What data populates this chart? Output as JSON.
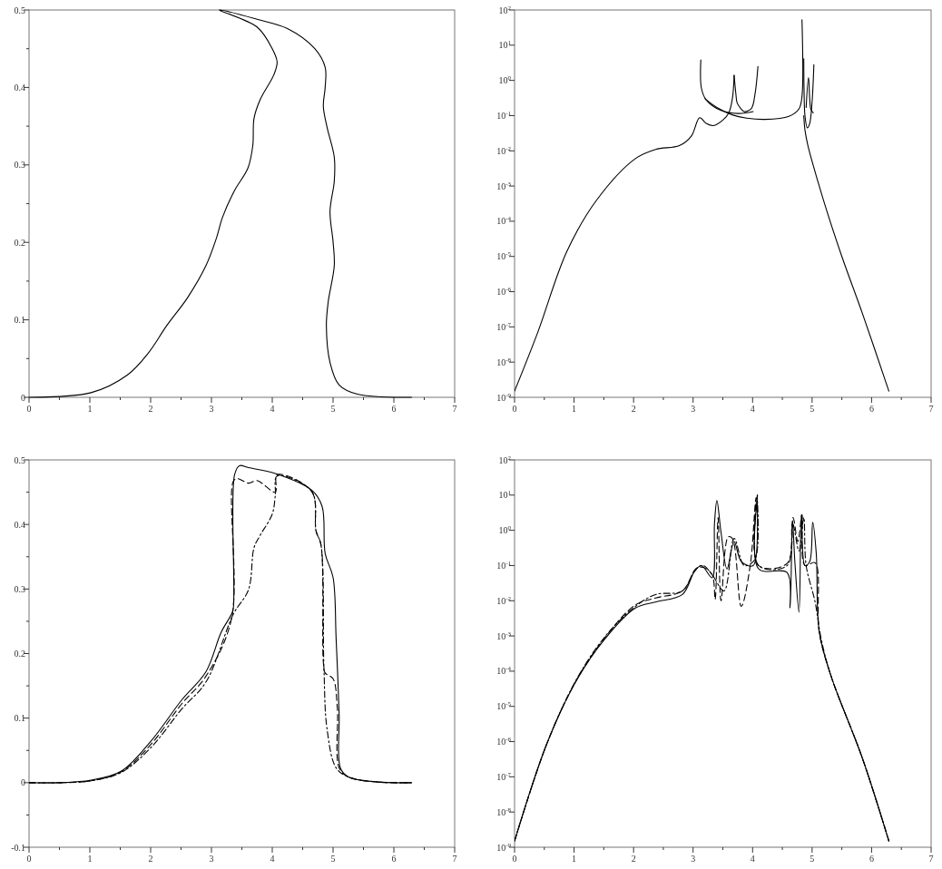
{
  "chart_data": [
    {
      "type": "line",
      "xlim": [
        0,
        7
      ],
      "ylim": [
        0,
        0.5
      ],
      "xticks": [
        0,
        {
          "value": 0.5,
          "label": null
        },
        1,
        {
          "value": 1.5,
          "label": null
        },
        2,
        {
          "value": 2.5,
          "label": null
        },
        3,
        {
          "value": 3.5,
          "label": null
        },
        4,
        {
          "value": 4.5,
          "label": null
        },
        5,
        {
          "value": 5.5,
          "label": null
        },
        6,
        {
          "value": 6.5,
          "label": null
        },
        7
      ],
      "yticks": [
        0,
        {
          "value": 0.05,
          "label": null
        },
        0.1,
        {
          "value": 0.15,
          "label": null
        },
        0.2,
        {
          "value": 0.25,
          "label": null
        },
        0.3,
        {
          "value": 0.35,
          "label": null
        },
        0.4,
        {
          "value": 0.45,
          "label": null
        },
        0.5
      ],
      "grid": false,
      "line_style": "solid",
      "series": [
        {
          "color": "#000000",
          "x": [
            0,
            1.02,
            1.62,
            1.96,
            2.26,
            2.61,
            2.91,
            3.08,
            3.18,
            3.38,
            3.6,
            3.68,
            3.7,
            3.8,
            4.03,
            4.08,
            4.0,
            3.75,
            3.13,
            3.75,
            4.25,
            4.7,
            4.87,
            4.87,
            4.84,
            4.9,
            5.02,
            5.02,
            4.95,
            5.0,
            5.02,
            4.92,
            4.89,
            4.95,
            5.1,
            5.4,
            6.29
          ],
          "values": [
            0,
            0.006,
            0.029,
            0.057,
            0.092,
            0.129,
            0.17,
            0.205,
            0.232,
            0.267,
            0.296,
            0.325,
            0.36,
            0.384,
            0.417,
            0.433,
            0.45,
            0.478,
            0.5,
            0.488,
            0.476,
            0.45,
            0.426,
            0.4,
            0.376,
            0.349,
            0.31,
            0.279,
            0.24,
            0.201,
            0.17,
            0.123,
            0.092,
            0.045,
            0.016,
            0.004,
            0
          ]
        }
      ]
    },
    {
      "type": "line",
      "log": "y",
      "xlim": [
        0,
        7
      ],
      "ylim": [
        1e-09,
        100
      ],
      "xticks": [
        0,
        {
          "value": 0.5,
          "label": null
        },
        1,
        {
          "value": 1.5,
          "label": null
        },
        2,
        {
          "value": 2.5,
          "label": null
        },
        3,
        {
          "value": 3.5,
          "label": null
        },
        4,
        {
          "value": 4.5,
          "label": null
        },
        5,
        {
          "value": 5.5,
          "label": null
        },
        6,
        {
          "value": 6.5,
          "label": null
        },
        7
      ],
      "yticks": [
        {
          "value": 1e-09,
          "label": "10$^{-9}$"
        },
        {
          "value": 1e-08,
          "label": "10$^{-8}$"
        },
        {
          "value": 1e-07,
          "label": "10$^{-7}$"
        },
        {
          "value": 1e-06,
          "label": "10$^{-6}$"
        },
        {
          "value": 1e-05,
          "label": "10$^{-5}$"
        },
        {
          "value": 0.0001,
          "label": "10$^{-4}$"
        },
        {
          "value": 0.001,
          "label": "10$^{-3}$"
        },
        {
          "value": 0.01,
          "label": "10$^{-2}$"
        },
        {
          "value": 0.1,
          "label": "10$^{-1}$"
        },
        {
          "value": 1,
          "label": "10$^{0}$"
        },
        {
          "value": 10,
          "label": "10$^{1}$"
        },
        {
          "value": 100,
          "label": "10$^{2}$"
        }
      ],
      "grid": false,
      "line_style": "solid",
      "series": [
        {
          "color": "#000000",
          "x": [
            0,
            0.39,
            0.88,
            1.38,
            2.03,
            2.37,
            2.77,
            2.97,
            3.11,
            3.22,
            3.34,
            3.5,
            3.6,
            3.66,
            3.69
          ],
          "values": [
            1.5e-09,
            7e-08,
            1.4e-05,
            0.0004,
            0.006,
            0.011,
            0.014,
            0.026,
            0.087,
            0.06,
            0.052,
            0.075,
            0.12,
            0.3,
            1.4
          ]
        },
        {
          "color": "#000000",
          "x": [
            3.69,
            3.72,
            3.74,
            3.8,
            3.86,
            3.98,
            4.04,
            4.09
          ],
          "values": [
            1.4,
            0.4,
            0.23,
            0.16,
            0.13,
            0.16,
            0.4,
            2.5
          ]
        },
        {
          "color": "#000000",
          "x": [
            3.13,
            3.14,
            3.22,
            3.47,
            3.76,
            4.01
          ],
          "values": [
            3.8,
            0.6,
            0.28,
            0.14,
            0.115,
            0.13
          ]
        },
        {
          "color": "#000000",
          "x": [
            3.2,
            3.4,
            3.66,
            3.9,
            4.21,
            4.61,
            4.78,
            4.83,
            4.83
          ],
          "values": [
            0.3,
            0.17,
            0.105,
            0.085,
            0.078,
            0.095,
            0.155,
            0.35,
            53
          ]
        },
        {
          "color": "#000000",
          "x": [
            4.86,
            4.865,
            4.88,
            4.92,
            4.96,
            5.0,
            5.03
          ],
          "values": [
            4.1,
            0.5,
            0.1,
            0.045,
            0.06,
            0.25,
            2.8
          ]
        },
        {
          "color": "#000000",
          "x": [
            4.86,
            4.88,
            4.93,
            5.1,
            5.25,
            5.5,
            5.85,
            6.29
          ],
          "values": [
            0.1,
            0.039,
            0.014,
            0.0013,
            0.00019,
            1e-05,
            2.3e-07,
            1.5e-09
          ]
        },
        {
          "color": "#000000",
          "x": [
            4.9,
            4.94,
            4.98,
            5.02
          ],
          "values": [
            0.17,
            1.2,
            0.15,
            0.12
          ]
        }
      ]
    },
    {
      "type": "line",
      "xlim": [
        0,
        7
      ],
      "ylim": [
        -0.1,
        0.5
      ],
      "xticks": [
        0,
        {
          "value": 0.5,
          "label": null
        },
        1,
        {
          "value": 1.5,
          "label": null
        },
        2,
        {
          "value": 2.5,
          "label": null
        },
        3,
        {
          "value": 3.5,
          "label": null
        },
        4,
        {
          "value": 4.5,
          "label": null
        },
        5,
        {
          "value": 5.5,
          "label": null
        },
        6,
        {
          "value": 6.5,
          "label": null
        },
        7
      ],
      "yticks": [
        -0.1,
        {
          "value": -0.05,
          "label": null
        },
        0,
        {
          "value": 0.05,
          "label": null
        },
        0.1,
        {
          "value": 0.15,
          "label": null
        },
        0.2,
        {
          "value": 0.25,
          "label": null
        },
        0.3,
        {
          "value": 0.35,
          "label": null
        },
        0.4,
        {
          "value": 0.45,
          "label": null
        },
        0.5
      ],
      "grid": false,
      "series": [
        {
          "color": "#000000",
          "line_style": "solid",
          "x": [
            0,
            0.5,
            1.02,
            1.52,
            2.01,
            2.51,
            2.91,
            3.16,
            3.33,
            3.36,
            3.38,
            3.46,
            3.61,
            4.05,
            4.65,
            4.82,
            4.87,
            5.0,
            5.05,
            5.1,
            5.12,
            5.25,
            5.74,
            6.29
          ],
          "values": [
            0,
            0,
            0.004,
            0.018,
            0.065,
            0.128,
            0.172,
            0.233,
            0.261,
            0.27,
            0.477,
            0.491,
            0.488,
            0.479,
            0.453,
            0.428,
            0.355,
            0.318,
            0.224,
            0.107,
            0.023,
            0.009,
            0.001,
            0
          ]
        },
        {
          "color": "#000000",
          "line_style": "dashed",
          "x": [
            0,
            0.5,
            1.02,
            1.52,
            2.01,
            2.51,
            2.91,
            3.33,
            3.36,
            3.43,
            3.61,
            3.75,
            4.05,
            4.08,
            4.65,
            4.72,
            4.8,
            4.84,
            4.87,
            5.0,
            5.07,
            5.1,
            5.25,
            5.74,
            6.29
          ],
          "values": [
            0,
            0,
            0.003,
            0.017,
            0.06,
            0.122,
            0.165,
            0.254,
            0.467,
            0.471,
            0.464,
            0.468,
            0.45,
            0.477,
            0.451,
            0.39,
            0.369,
            0.187,
            0.17,
            0.161,
            0.116,
            0.023,
            0.009,
            0.001,
            0
          ]
        },
        {
          "color": "#000000",
          "line_style": "dashdot",
          "x": [
            0,
            0.5,
            1.02,
            1.52,
            2.01,
            2.51,
            2.91,
            3.36,
            3.61,
            3.7,
            3.8,
            4.0,
            4.05,
            4.08,
            4.65,
            4.72,
            4.8,
            4.85,
            4.9,
            5.05,
            5.25,
            5.74,
            6.29
          ],
          "values": [
            0,
            0,
            0.003,
            0.016,
            0.055,
            0.114,
            0.156,
            0.261,
            0.299,
            0.364,
            0.383,
            0.416,
            0.445,
            0.475,
            0.451,
            0.39,
            0.369,
            0.177,
            0.084,
            0.023,
            0.009,
            0.001,
            0
          ]
        }
      ]
    },
    {
      "type": "line",
      "log": "y",
      "xlim": [
        0,
        7
      ],
      "ylim": [
        1e-09,
        100
      ],
      "xticks": [
        0,
        {
          "value": 0.5,
          "label": null
        },
        1,
        {
          "value": 1.5,
          "label": null
        },
        2,
        {
          "value": 2.5,
          "label": null
        },
        3,
        {
          "value": 3.5,
          "label": null
        },
        4,
        {
          "value": 4.5,
          "label": null
        },
        5,
        {
          "value": 5.5,
          "label": null
        },
        6,
        {
          "value": 6.5,
          "label": null
        },
        7
      ],
      "yticks": [
        {
          "value": 1e-09,
          "label": "10$^{-9}$"
        },
        {
          "value": 1e-08,
          "label": "10$^{-8}$"
        },
        {
          "value": 1e-07,
          "label": "10$^{-7}$"
        },
        {
          "value": 1e-06,
          "label": "10$^{-6}$"
        },
        {
          "value": 1e-05,
          "label": "10$^{-5}$"
        },
        {
          "value": 0.0001,
          "label": "10$^{-4}$"
        },
        {
          "value": 0.001,
          "label": "10$^{-3}$"
        },
        {
          "value": 0.01,
          "label": "10$^{-2}$"
        },
        {
          "value": 0.1,
          "label": "10$^{-1}$"
        },
        {
          "value": 1,
          "label": "10$^{0}$"
        },
        {
          "value": 10,
          "label": "10$^{1}$"
        },
        {
          "value": 100,
          "label": "10$^{2}$"
        }
      ],
      "grid": false,
      "series": [
        {
          "color": "#000000",
          "line_style": "solid",
          "x": [
            0,
            0.54,
            1.04,
            1.53,
            2.03,
            2.38,
            2.82,
            3.02,
            3.14,
            3.32,
            3.36,
            3.4,
            3.47,
            3.57,
            3.69,
            3.81,
            4.01,
            4.08,
            4.1,
            4.58,
            4.63,
            4.67,
            4.71,
            4.78,
            4.82,
            4.88,
            4.96,
            5.01,
            5.07,
            5.12,
            5.31,
            5.85,
            6.29
          ],
          "values": [
            1.5e-09,
            8.5e-07,
            5.4e-05,
            0.00087,
            0.0062,
            0.0093,
            0.015,
            0.066,
            0.1,
            0.045,
            1.6,
            7,
            0.87,
            0.08,
            0.48,
            0.13,
            0.1,
            10,
            0.081,
            0.063,
            0.0063,
            1.9,
            0.13,
            0.0047,
            2.8,
            0.1,
            0.13,
            1.7,
            0.22,
            0.0013,
            8e-05,
            3.2e-07,
            1.5e-09
          ]
        },
        {
          "color": "#000000",
          "line_style": "dashed",
          "x": [
            0,
            0.54,
            1.04,
            1.53,
            2.03,
            2.37,
            2.82,
            3.05,
            3.17,
            3.32,
            3.37,
            3.42,
            3.47,
            3.59,
            3.66,
            3.81,
            3.96,
            4.06,
            4.1,
            4.58,
            4.68,
            4.76,
            4.83,
            4.88,
            5.05,
            5.12,
            5.31,
            5.85,
            6.29
          ],
          "values": [
            1.5e-09,
            8.5e-07,
            5.6e-05,
            0.00095,
            0.0076,
            0.012,
            0.019,
            0.081,
            0.089,
            0.055,
            0.011,
            2.3,
            0.01,
            0.65,
            0.59,
            0.0069,
            0.1,
            8.5,
            0.1,
            0.115,
            2.3,
            0.48,
            2.8,
            0.1,
            0.12,
            0.0013,
            8e-05,
            3.2e-07,
            1.5e-09
          ]
        },
        {
          "color": "#000000",
          "line_style": "dashdot",
          "x": [
            0,
            0.54,
            1.04,
            1.53,
            2.03,
            2.37,
            2.82,
            3.05,
            3.17,
            3.32,
            3.52,
            3.69,
            3.86,
            4.04,
            4.08,
            4.1,
            4.58,
            4.67,
            4.78,
            4.86,
            4.9,
            5.05,
            5.15,
            5.31,
            5.85,
            6.29
          ],
          "values": [
            1.5e-09,
            8.5e-07,
            5.8e-05,
            0.001,
            0.0069,
            0.015,
            0.019,
            0.081,
            0.1,
            0.055,
            0.019,
            0.59,
            0.1,
            0.15,
            10,
            0.1,
            0.1,
            1.6,
            0.26,
            2.3,
            0.1,
            0.0093,
            0.00087,
            8e-05,
            3.2e-07,
            1.5e-09
          ]
        }
      ]
    }
  ]
}
